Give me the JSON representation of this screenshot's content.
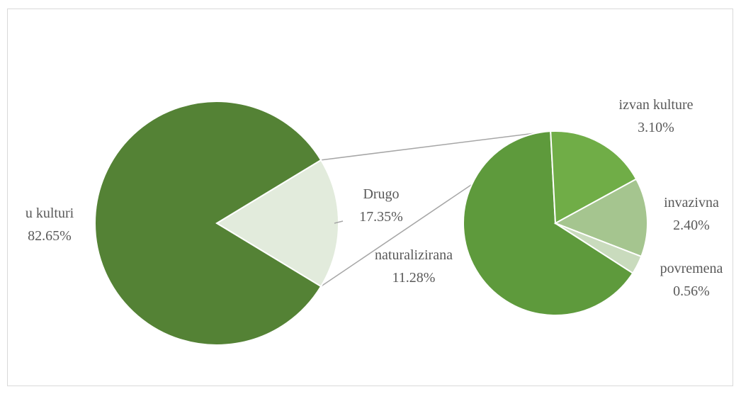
{
  "chart_data": {
    "type": "pie",
    "variant": "pie-of-pie",
    "main": {
      "slices": [
        {
          "label": "u kulturi",
          "value": 82.65,
          "display": "82.65%",
          "color": "#548235"
        },
        {
          "label": "Drugo",
          "value": 17.35,
          "display": "17.35%",
          "color": "#e2ebdc"
        }
      ]
    },
    "secondary": {
      "slices": [
        {
          "label": "naturalizirana",
          "value": 11.28,
          "display": "11.28%",
          "color": "#5e9a3c"
        },
        {
          "label": "izvan kulture",
          "value": 3.1,
          "display": "3.10%",
          "color": "#70ad47"
        },
        {
          "label": "invazivna",
          "value": 2.4,
          "display": "2.40%",
          "color": "#a5c58f"
        },
        {
          "label": "povremena",
          "value": 0.56,
          "display": "0.56%",
          "color": "#c9dbbd"
        }
      ]
    },
    "title": "",
    "legend": "none"
  }
}
